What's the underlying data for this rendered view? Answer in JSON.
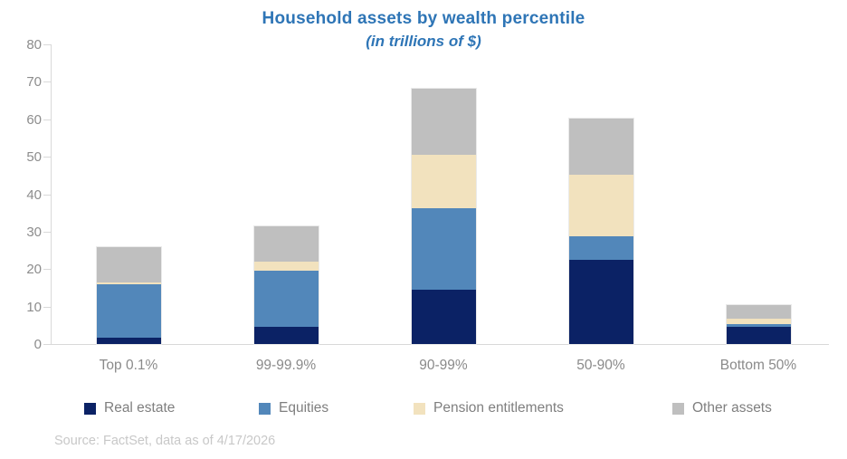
{
  "title": "Household assets by wealth percentile",
  "subtitle": "(in trillions of $)",
  "source": "Source: FactSet, data as of 4/17/2026",
  "colors": {
    "title_blue": "#2E75B6",
    "axis_gray": "#D9D9D9",
    "tick_label_gray": "#8C8C8C",
    "legend_text_gray": "#7F7F7F",
    "source_gray": "#C8C8C8",
    "real_estate": "#0B2265",
    "equities": "#5287BA",
    "pension_entitlements": "#F2E2BE",
    "other_assets": "#BFBFBF"
  },
  "chart_data": {
    "type": "bar",
    "stacked": true,
    "title": "Household assets by wealth percentile",
    "subtitle": "(in trillions of $)",
    "categories": [
      "Top 0.1%",
      "99-99.9%",
      "90-99%",
      "50-90%",
      "Bottom 50%"
    ],
    "series": [
      {
        "name": "Real estate",
        "color": "#0B2265",
        "values": [
          1.8,
          4.5,
          14.5,
          22.4,
          4.5
        ]
      },
      {
        "name": "Equities",
        "color": "#5287BA",
        "values": [
          14.2,
          15.1,
          21.8,
          6.4,
          0.9
        ]
      },
      {
        "name": "Pension entitlements",
        "color": "#F2E2BE",
        "values": [
          0.5,
          2.5,
          14.2,
          16.3,
          1.4
        ]
      },
      {
        "name": "Other assets",
        "color": "#BFBFBF",
        "values": [
          9.4,
          9.2,
          17.7,
          15.2,
          3.7
        ]
      }
    ],
    "totals": [
      25.9,
      31.3,
      68.2,
      60.3,
      10.5
    ],
    "xlabel": "",
    "ylabel": "",
    "ylim": [
      0,
      80
    ],
    "ytick_step": 10,
    "yticks": [
      0,
      10,
      20,
      30,
      40,
      50,
      60,
      70,
      80
    ],
    "grid": false,
    "legend_position": "bottom"
  }
}
